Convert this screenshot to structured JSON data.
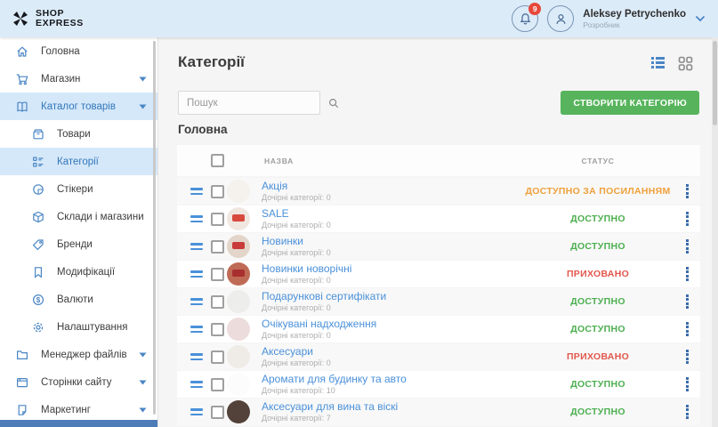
{
  "brand": {
    "line1": "SHOP",
    "line2": "EXPRESS"
  },
  "header": {
    "notification_count": "9",
    "user_name": "Aleksey Petrychenko",
    "user_role": "Розробник"
  },
  "sidebar": {
    "top_items": [
      {
        "label": "Головна",
        "icon": "home",
        "expandable": false,
        "active": false
      },
      {
        "label": "Магазин",
        "icon": "cart",
        "expandable": true,
        "active": false
      },
      {
        "label": "Каталог товарів",
        "icon": "catalog",
        "expandable": true,
        "active": true
      }
    ],
    "sub_items": [
      {
        "label": "Товари",
        "icon": "products",
        "active": false
      },
      {
        "label": "Категорії",
        "icon": "categories",
        "active": true
      },
      {
        "label": "Стікери",
        "icon": "sticker",
        "active": false
      },
      {
        "label": "Склади і магазини",
        "icon": "warehouse",
        "active": false
      },
      {
        "label": "Бренди",
        "icon": "brand",
        "active": false
      },
      {
        "label": "Модифікації",
        "icon": "bookmark",
        "active": false
      },
      {
        "label": "Валюти",
        "icon": "currency",
        "active": false
      },
      {
        "label": "Налаштування",
        "icon": "settings",
        "active": false
      }
    ],
    "bottom_items": [
      {
        "label": "Менеджер файлів",
        "icon": "folder",
        "expandable": true,
        "active": false
      },
      {
        "label": "Сторінки сайту",
        "icon": "pages",
        "expandable": true,
        "active": false
      },
      {
        "label": "Маркетинг",
        "icon": "marketing",
        "expandable": true,
        "active": false
      }
    ]
  },
  "main": {
    "title": "Категорії",
    "search_placeholder": "Пошук",
    "create_button": "СТВОРИТИ КАТЕГОРІЮ",
    "section_title": "Головна",
    "table": {
      "col_name": "НАЗВА",
      "col_status": "СТАТУС",
      "rows": [
        {
          "name": "Акція",
          "children": "Дочірні категорії: 0",
          "status": "ДОСТУПНО ЗА ПОСИЛАННЯМ",
          "status_key": "link",
          "avatar_bg": "#f5f1ed",
          "avatar_tag": null
        },
        {
          "name": "SALE",
          "children": "Дочірні категорії: 0",
          "status": "ДОСТУПНО",
          "status_key": "available",
          "avatar_bg": "#f0e7e1",
          "avatar_tag": "#d84a3e"
        },
        {
          "name": "Новинки",
          "children": "Дочірні категорії: 0",
          "status": "ДОСТУПНО",
          "status_key": "available",
          "avatar_bg": "#e3d5c9",
          "avatar_tag": "#c93b3b"
        },
        {
          "name": "Новинки новорічні",
          "children": "Дочірні категорії: 0",
          "status": "ПРИХОВАНО",
          "status_key": "hidden",
          "avatar_bg": "#bf6a55",
          "avatar_tag": "#a82f2f"
        },
        {
          "name": "Подарункові сертифікати",
          "children": "Дочірні категорії: 0",
          "status": "ДОСТУПНО",
          "status_key": "available",
          "avatar_bg": "#ededeb",
          "avatar_tag": null
        },
        {
          "name": "Очікувані надходження",
          "children": "Дочірні категорії: 0",
          "status": "ДОСТУПНО",
          "status_key": "available",
          "avatar_bg": "#eddcdc",
          "avatar_tag": null
        },
        {
          "name": "Аксесуари",
          "children": "Дочірні категорії: 0",
          "status": "ПРИХОВАНО",
          "status_key": "hidden",
          "avatar_bg": "#efece7",
          "avatar_tag": null
        },
        {
          "name": "Аромати для будинку та авто",
          "children": "Дочірні категорії: 10",
          "status": "ДОСТУПНО",
          "status_key": "available",
          "avatar_bg": "#fcfcfc",
          "avatar_tag": null
        },
        {
          "name": "Аксесуари для вина та віскі",
          "children": "Дочірні категорії: 7",
          "status": "ДОСТУПНО",
          "status_key": "available",
          "avatar_bg": "#53423a",
          "avatar_tag": null
        }
      ]
    }
  },
  "colors": {
    "status": {
      "available": "#4caf50",
      "hidden": "#e2574c",
      "link": "#efa03b"
    },
    "accent_blue": "#4a90d9",
    "button_green": "#57b45c",
    "topbar_bg": "#dcebf8",
    "sidebar_active_bg": "#d5e8f9"
  }
}
